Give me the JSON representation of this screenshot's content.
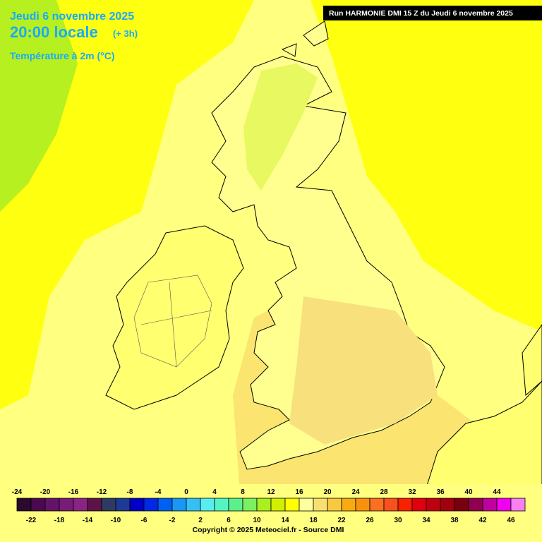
{
  "header": {
    "date": "Jeudi 6 novembre 2025",
    "time": "20:00 locale",
    "offset": "(+ 3h)",
    "variable": "Température à 2m (°C)",
    "run": "Run HARMONIE DMI 15 Z du Jeudi 6 novembre 2025"
  },
  "colorbar": {
    "top_labels": [
      -24,
      -20,
      -16,
      -12,
      -8,
      -4,
      0,
      4,
      8,
      12,
      16,
      20,
      24,
      28,
      32,
      36,
      40,
      44
    ],
    "bottom_labels": [
      -22,
      -18,
      -14,
      -10,
      -6,
      -2,
      2,
      6,
      10,
      14,
      18,
      22,
      26,
      30,
      34,
      38,
      42,
      46
    ],
    "colors": [
      "#2a0a2e",
      "#4a0a50",
      "#641468",
      "#781c78",
      "#8a2484",
      "#5c1448",
      "#2e3a62",
      "#1c3a96",
      "#0000c8",
      "#0028e6",
      "#0060f4",
      "#1a96f4",
      "#34c0f4",
      "#58eef0",
      "#54f4c4",
      "#5cf08c",
      "#7cf060",
      "#a8f020",
      "#d0f000",
      "#ffff00",
      "#ffffa0",
      "#f8e070",
      "#f8c840",
      "#f8aa10",
      "#f89010",
      "#f87020",
      "#f85020",
      "#f82000",
      "#e00010",
      "#c00010",
      "#a00010",
      "#780010",
      "#900050",
      "#c0009c",
      "#f000f0",
      "#f880f0"
    ]
  },
  "footer": {
    "copyright": "Copyright © 2025 Meteociel.fr - Source DMI"
  }
}
